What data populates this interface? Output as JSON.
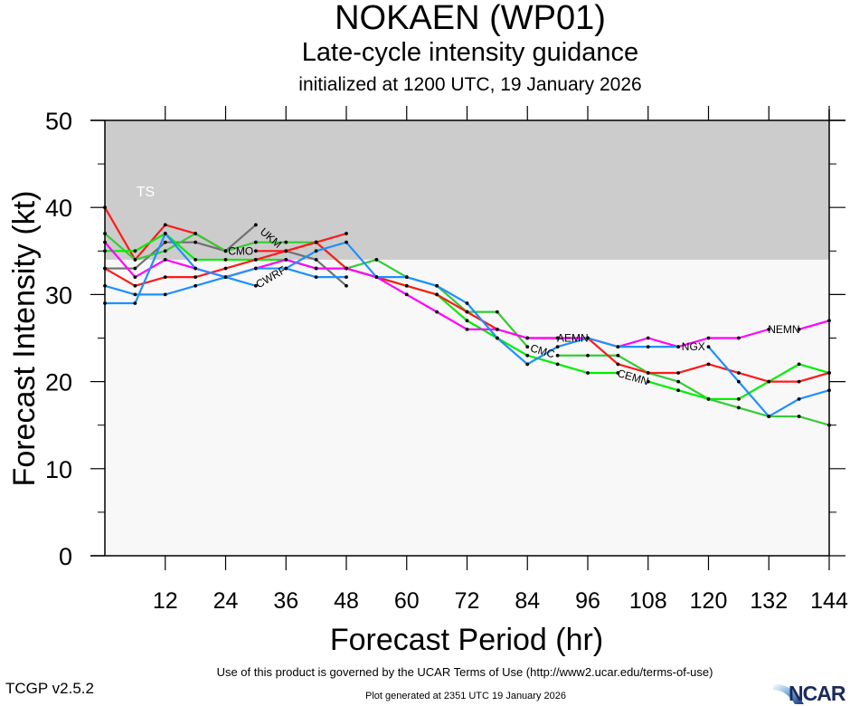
{
  "header": {
    "title": "NOKAEN (WP01)",
    "subtitle": "Late-cycle intensity guidance",
    "init_line": "initialized at 1200 UTC, 19 January 2026"
  },
  "footer": {
    "terms": "Use of this product is governed by the UCAR Terms of Use (http://www2.ucar.edu/terms-of-use)",
    "version": "TCGP v2.5.2",
    "generated": "Plot generated at 2351 UTC   19 January 2026",
    "logo_text": "NCAR"
  },
  "chart_data": {
    "type": "line",
    "title": "NOKAEN (WP01)",
    "subtitle": "Late-cycle intensity guidance",
    "xlabel": "Forecast Period (hr)",
    "ylabel": "Forecast Intensity (kt)",
    "xlim": [
      0,
      144
    ],
    "ylim": [
      0,
      50
    ],
    "xticks": [
      12,
      24,
      36,
      48,
      60,
      72,
      84,
      96,
      108,
      120,
      132,
      144
    ],
    "yticks": [
      0,
      10,
      20,
      30,
      40,
      50
    ],
    "grid": false,
    "bands": [
      {
        "label": "TS",
        "from": 34,
        "to": 50,
        "color": "#cccccc"
      }
    ],
    "background_color": "#f8f8f8",
    "series": [
      {
        "name": "UKM",
        "color": "#707070",
        "label_at": 30,
        "x": [
          0,
          6,
          12,
          18,
          24,
          30,
          36,
          42,
          48
        ],
        "values": [
          33,
          33,
          36,
          36,
          35,
          38,
          35,
          34,
          31
        ]
      },
      {
        "name": "CMO",
        "color": "#ff1a1a",
        "label_at": 24,
        "x": [
          0,
          6,
          12,
          18,
          24,
          30,
          36,
          42,
          48
        ],
        "values": [
          40,
          34,
          38,
          37,
          35,
          35,
          35,
          36,
          37
        ]
      },
      {
        "name": "CWRF",
        "color": "#1e90ff",
        "label_at": 30,
        "x": [
          0,
          6,
          12,
          18,
          24,
          30,
          36,
          42,
          48
        ],
        "values": [
          31,
          30,
          30,
          31,
          32,
          31,
          33,
          32,
          32
        ]
      },
      {
        "name": "CMC",
        "color": "#33cc33",
        "label_at": 84,
        "x": [
          0,
          6,
          12,
          18,
          24,
          30,
          36,
          42,
          48,
          54,
          60,
          66,
          72,
          78,
          84,
          90,
          96,
          102,
          108,
          114,
          120,
          126,
          132,
          138,
          144
        ],
        "values": [
          37,
          34,
          35,
          37,
          35,
          36,
          36,
          36,
          33,
          34,
          32,
          31,
          28,
          28,
          24,
          23,
          23,
          23,
          21,
          20,
          18,
          17,
          16,
          16,
          15
        ]
      },
      {
        "name": "CEMN",
        "color": "#00ee00",
        "label_at": 102,
        "x": [
          0,
          6,
          12,
          18,
          24,
          30,
          36,
          42,
          48,
          54,
          60,
          66,
          72,
          78,
          84,
          90,
          96,
          102,
          108,
          114,
          120,
          126,
          132,
          138,
          144
        ],
        "values": [
          35,
          35,
          37,
          34,
          34,
          34,
          34,
          33,
          33,
          32,
          31,
          30,
          27,
          25,
          23,
          22,
          21,
          21,
          20,
          19,
          18,
          18,
          20,
          22,
          21
        ]
      },
      {
        "name": "AEMN",
        "color": "#ff1a1a",
        "label_at": 90,
        "x": [
          0,
          6,
          12,
          18,
          24,
          30,
          36,
          42,
          48,
          54,
          60,
          66,
          72,
          78,
          84,
          90,
          96,
          102,
          108,
          114,
          120,
          126,
          132,
          138,
          144
        ],
        "values": [
          33,
          31,
          32,
          32,
          33,
          34,
          35,
          36,
          33,
          32,
          31,
          30,
          28,
          26,
          25,
          25,
          25,
          22,
          21,
          21,
          22,
          21,
          20,
          20,
          21
        ]
      },
      {
        "name": "NEMN",
        "color": "#ff00ff",
        "label_at": 132,
        "x": [
          0,
          6,
          12,
          18,
          24,
          30,
          36,
          42,
          48,
          54,
          60,
          66,
          72,
          78,
          84,
          90,
          96,
          102,
          108,
          114,
          120,
          126,
          132,
          138,
          144
        ],
        "values": [
          36,
          32,
          34,
          33,
          32,
          33,
          34,
          33,
          33,
          32,
          30,
          28,
          26,
          26,
          25,
          25,
          25,
          24,
          25,
          24,
          25,
          25,
          26,
          26,
          27
        ]
      },
      {
        "name": "NGX",
        "color": "#1e90ff",
        "label_at": 114,
        "x": [
          0,
          6,
          12,
          18,
          24,
          30,
          36,
          42,
          48,
          54,
          60,
          66,
          72,
          78,
          84,
          90,
          96,
          102,
          108,
          114,
          120,
          126,
          132,
          138,
          144
        ],
        "values": [
          29,
          29,
          37,
          33,
          32,
          33,
          33,
          35,
          36,
          32,
          32,
          31,
          29,
          25,
          22,
          24,
          25,
          24,
          24,
          24,
          24,
          20,
          16,
          18,
          19
        ]
      }
    ]
  }
}
